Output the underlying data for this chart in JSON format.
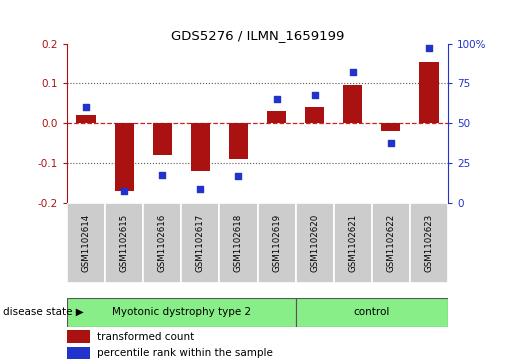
{
  "title": "GDS5276 / ILMN_1659199",
  "categories": [
    "GSM1102614",
    "GSM1102615",
    "GSM1102616",
    "GSM1102617",
    "GSM1102618",
    "GSM1102619",
    "GSM1102620",
    "GSM1102621",
    "GSM1102622",
    "GSM1102623"
  ],
  "red_values": [
    0.02,
    -0.17,
    -0.08,
    -0.12,
    -0.09,
    0.03,
    0.04,
    0.095,
    -0.02,
    0.155
  ],
  "blue_values": [
    60,
    8,
    18,
    9,
    17,
    65,
    68,
    82,
    38,
    97
  ],
  "group1_label": "Myotonic dystrophy type 2",
  "group1_count": 6,
  "group2_label": "control",
  "group2_count": 4,
  "ylim_left": [
    -0.2,
    0.2
  ],
  "yticks_left": [
    -0.2,
    -0.1,
    0.0,
    0.1,
    0.2
  ],
  "ytick_labels_right": [
    "0",
    "25",
    "50",
    "75",
    "100%"
  ],
  "legend_red": "transformed count",
  "legend_blue": "percentile rank within the sample",
  "disease_state_label": "disease state",
  "bar_color": "#aa1111",
  "dot_color": "#2233cc",
  "group1_color": "#88ee88",
  "group2_color": "#88ee88",
  "grid_color": "#555555",
  "zero_line_color": "#cc2222",
  "bg_color": "#ffffff",
  "tick_area_color": "#cccccc"
}
